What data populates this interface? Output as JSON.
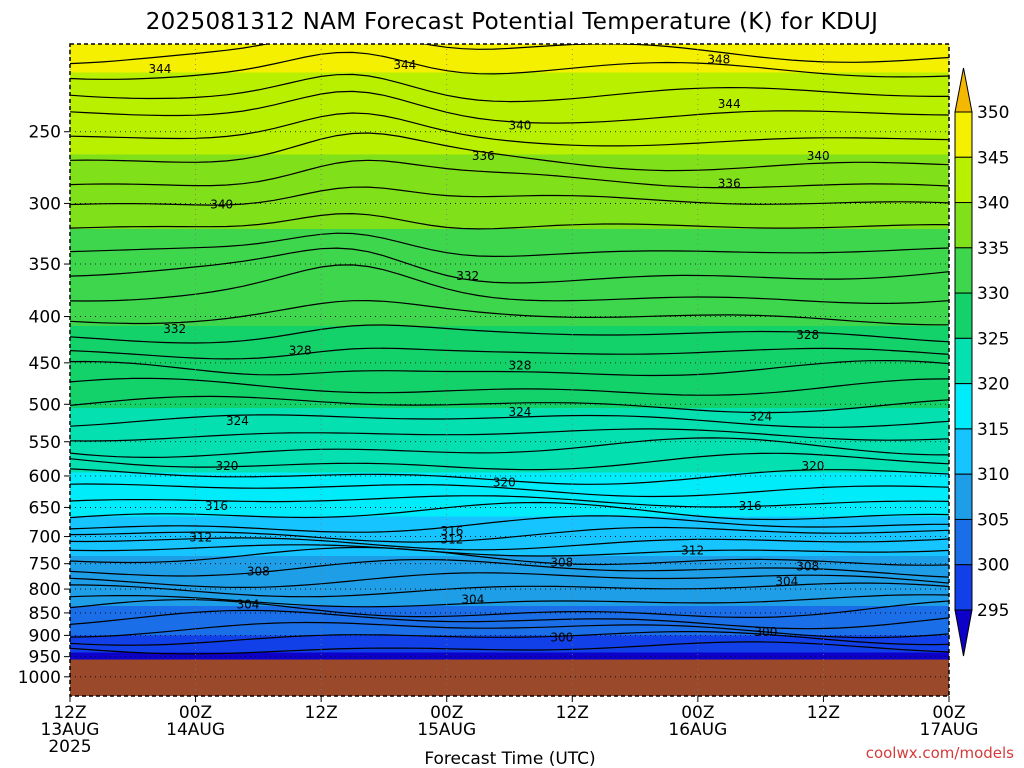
{
  "chart_data": {
    "type": "heatmap",
    "title": "2025081312 NAM Forecast Potential Temperature (K) for KDUJ",
    "xlabel": "Forecast Time (UTC)",
    "ylabel": "",
    "x_ticks": [
      {
        "hour": 0,
        "lines": [
          "12Z",
          "13AUG",
          "2025"
        ]
      },
      {
        "hour": 12,
        "lines": [
          "00Z",
          "14AUG"
        ]
      },
      {
        "hour": 24,
        "lines": [
          "12Z"
        ]
      },
      {
        "hour": 36,
        "lines": [
          "00Z",
          "15AUG"
        ]
      },
      {
        "hour": 48,
        "lines": [
          "12Z"
        ]
      },
      {
        "hour": 60,
        "lines": [
          "00Z",
          "16AUG"
        ]
      },
      {
        "hour": 72,
        "lines": [
          "12Z"
        ]
      },
      {
        "hour": 84,
        "lines": [
          "00Z",
          "17AUG"
        ]
      }
    ],
    "xlim_hours": [
      0,
      84
    ],
    "y_ticks_hpa": [
      250,
      300,
      350,
      400,
      450,
      500,
      550,
      600,
      650,
      700,
      750,
      800,
      850,
      900,
      950,
      1000
    ],
    "ylim_hpa": [
      200,
      1050
    ],
    "y_scale": "log-pressure (inverted)",
    "ground_pressure_hpa": 957,
    "grid": true,
    "colorbar": {
      "levels": [
        295,
        300,
        305,
        310,
        315,
        320,
        325,
        330,
        335,
        340,
        345,
        350
      ],
      "colors": [
        "#0d00c8",
        "#1240e8",
        "#1a6fe8",
        "#1f9ee8",
        "#16c4ff",
        "#00ecfa",
        "#05e0b0",
        "#14d26a",
        "#3dd64c",
        "#80e01a",
        "#b8f000",
        "#f5f000",
        "#f5b800"
      ],
      "extend": "both"
    },
    "contour_labels": [
      {
        "value": "344",
        "hour": 8.6,
        "hpa": 213
      },
      {
        "value": "344",
        "hour": 32.0,
        "hpa": 211
      },
      {
        "value": "348",
        "hour": 62.0,
        "hpa": 208
      },
      {
        "value": "344",
        "hour": 63.0,
        "hpa": 233
      },
      {
        "value": "340",
        "hour": 43.0,
        "hpa": 246
      },
      {
        "value": "340",
        "hour": 71.5,
        "hpa": 266
      },
      {
        "value": "336",
        "hour": 39.5,
        "hpa": 266
      },
      {
        "value": "336",
        "hour": 63.0,
        "hpa": 285
      },
      {
        "value": "340",
        "hour": 14.5,
        "hpa": 301
      },
      {
        "value": "332",
        "hour": 38.0,
        "hpa": 361
      },
      {
        "value": "332",
        "hour": 10.0,
        "hpa": 413
      },
      {
        "value": "328",
        "hour": 22.0,
        "hpa": 436
      },
      {
        "value": "328",
        "hour": 43.0,
        "hpa": 453
      },
      {
        "value": "328",
        "hour": 70.5,
        "hpa": 419
      },
      {
        "value": "324",
        "hour": 16.0,
        "hpa": 522
      },
      {
        "value": "324",
        "hour": 43.0,
        "hpa": 510
      },
      {
        "value": "324",
        "hour": 66.0,
        "hpa": 516
      },
      {
        "value": "320",
        "hour": 15.0,
        "hpa": 585
      },
      {
        "value": "320",
        "hour": 41.5,
        "hpa": 610
      },
      {
        "value": "320",
        "hour": 71.0,
        "hpa": 585
      },
      {
        "value": "316",
        "hour": 14.0,
        "hpa": 648
      },
      {
        "value": "316",
        "hour": 36.5,
        "hpa": 690
      },
      {
        "value": "316",
        "hour": 65.0,
        "hpa": 648
      },
      {
        "value": "312",
        "hour": 12.5,
        "hpa": 702
      },
      {
        "value": "312",
        "hour": 36.5,
        "hpa": 705
      },
      {
        "value": "312",
        "hour": 59.5,
        "hpa": 725
      },
      {
        "value": "308",
        "hour": 18.0,
        "hpa": 765
      },
      {
        "value": "308",
        "hour": 47.0,
        "hpa": 748
      },
      {
        "value": "308",
        "hour": 70.5,
        "hpa": 755
      },
      {
        "value": "304",
        "hour": 17.0,
        "hpa": 832
      },
      {
        "value": "304",
        "hour": 38.5,
        "hpa": 822
      },
      {
        "value": "304",
        "hour": 68.5,
        "hpa": 785
      },
      {
        "value": "300",
        "hour": 47.0,
        "hpa": 905
      },
      {
        "value": "300",
        "hour": 66.5,
        "hpa": 892
      }
    ]
  },
  "credit": "coolwx.com/models"
}
